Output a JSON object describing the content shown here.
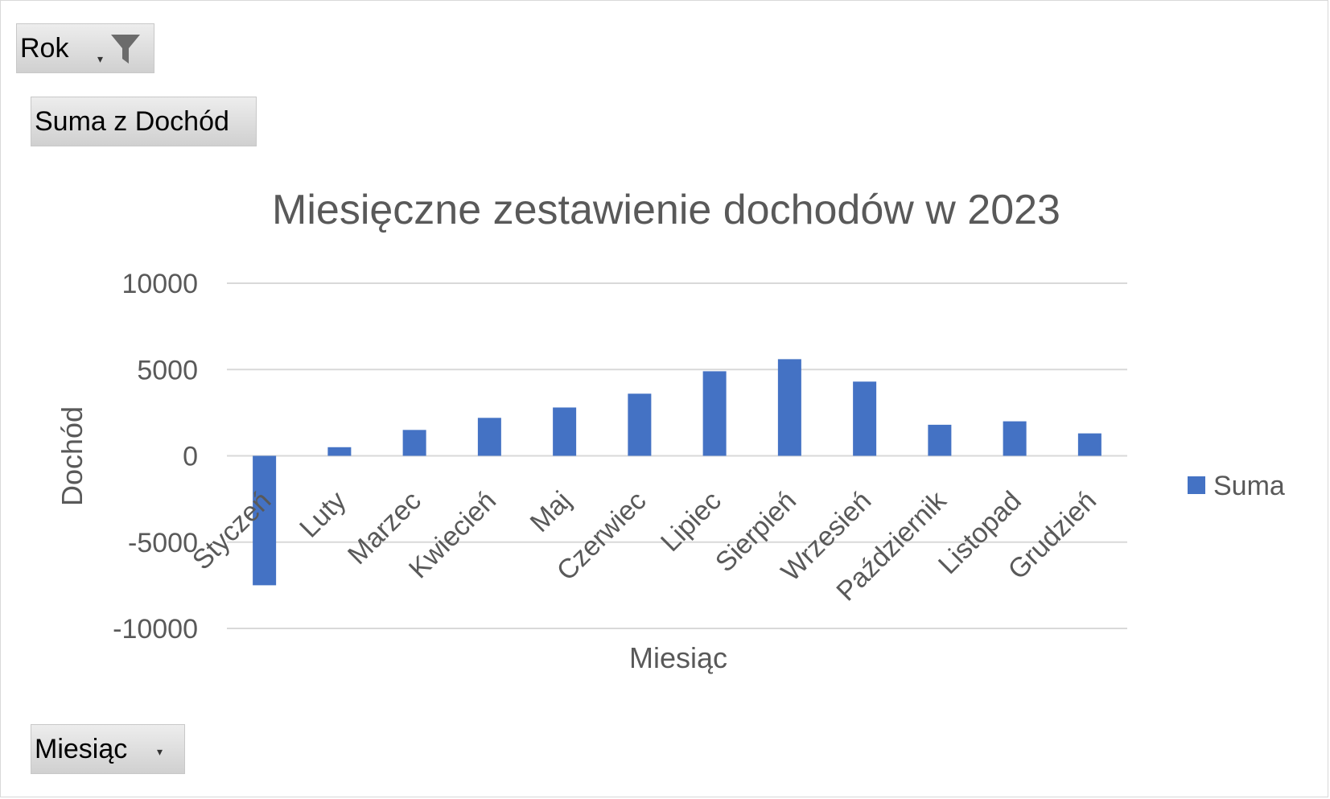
{
  "field_buttons": {
    "filter_label": "Rok",
    "values_label": "Suma z Dochód",
    "axis_label": "Miesiąc"
  },
  "icons": {
    "filter": "funnel-icon",
    "dropdown": "dropdown-arrow-icon"
  },
  "colors": {
    "bar": "#4472C4",
    "text": "#595959",
    "gridline": "#d9d9d9"
  },
  "chart_data": {
    "type": "bar",
    "title": "Miesięczne zestawienie dochodów w 2023",
    "xlabel": "Miesiąc",
    "ylabel": "Dochód",
    "ylim": [
      -10000,
      10000
    ],
    "yticks": [
      10000,
      5000,
      0,
      -5000,
      -10000
    ],
    "grid": true,
    "legend_position": "right",
    "categories": [
      "Styczeń",
      "Luty",
      "Marzec",
      "Kwiecień",
      "Maj",
      "Czerwiec",
      "Lipiec",
      "Sierpień",
      "Wrzesień",
      "Październik",
      "Listopad",
      "Grudzień"
    ],
    "series": [
      {
        "name": "Suma",
        "values": [
          -7500,
          500,
          1500,
          2200,
          2800,
          3600,
          4900,
          5600,
          4300,
          1800,
          2000,
          1300
        ]
      }
    ]
  }
}
